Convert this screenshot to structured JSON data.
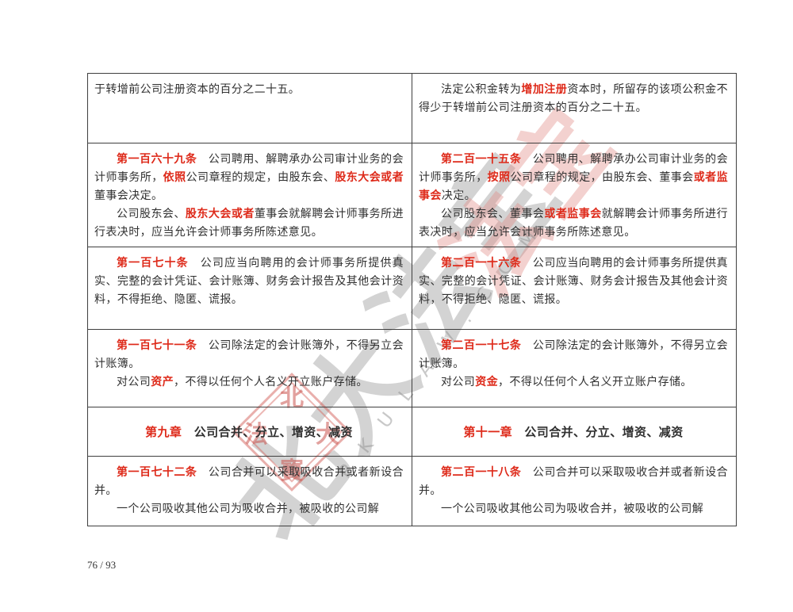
{
  "page": {
    "page_number": "76 / 93"
  },
  "colors": {
    "highlight": "#de2a1a",
    "text": "#303030",
    "border": "#3f3f3f"
  },
  "watermark": {
    "calligraphy_gray": "北大法宝",
    "calligraphy_pink": "法宝",
    "latin": "PKULAW.COM",
    "seal": {
      "top": "北",
      "left": "法",
      "right": "大",
      "bottom": "寳"
    }
  },
  "table": {
    "rows": [
      {
        "kind": "article",
        "left": {
          "paragraphs": [
            {
              "indent": false,
              "segments": [
                {
                  "t": "于转增前公司注册资本的百分之二十五。"
                }
              ]
            }
          ]
        },
        "right": {
          "paragraphs": [
            {
              "indent": true,
              "segments": [
                {
                  "t": "法定公积金转为"
                },
                {
                  "t": "增加注册",
                  "hl": true
                },
                {
                  "t": "资本时，所留存的该项公积金不得少于转增前公司注册资本的百分之二十五。"
                }
              ]
            }
          ]
        }
      },
      {
        "kind": "article",
        "left": {
          "paragraphs": [
            {
              "indent": true,
              "segments": [
                {
                  "t": "第一百六十九条",
                  "hl": true
                },
                {
                  "t": "　公司聘用、解聘承办公司审计业务的会计师事务所，"
                },
                {
                  "t": "依照",
                  "hl": true
                },
                {
                  "t": "公司章程的规定，由股东会、"
                },
                {
                  "t": "股东大会或者",
                  "hl": true
                },
                {
                  "t": "董事会决定。"
                }
              ]
            },
            {
              "indent": true,
              "segments": [
                {
                  "t": "公司股东会、"
                },
                {
                  "t": "股东大会或者",
                  "hl": true
                },
                {
                  "t": "董事会就解聘会计师事务所进行表决时，应当允许会计师事务所陈述意见。"
                }
              ]
            }
          ]
        },
        "right": {
          "paragraphs": [
            {
              "indent": true,
              "segments": [
                {
                  "t": "第二百一十五条",
                  "hl": true
                },
                {
                  "t": "　公司聘用、解聘承办公司审计业务的会计师事务所，"
                },
                {
                  "t": "按照",
                  "hl": true
                },
                {
                  "t": "公司章程的规定，由股东会、董事会"
                },
                {
                  "t": "或者监事会",
                  "hl": true
                },
                {
                  "t": "决定。"
                }
              ]
            },
            {
              "indent": true,
              "segments": [
                {
                  "t": "公司股东会、董事会"
                },
                {
                  "t": "或者监事会",
                  "hl": true
                },
                {
                  "t": "就解聘会计师事务所进行表决时，应当允许会计师事务所陈述意见。"
                }
              ]
            }
          ]
        }
      },
      {
        "kind": "article",
        "left": {
          "paragraphs": [
            {
              "indent": true,
              "segments": [
                {
                  "t": "第一百七十条",
                  "hl": true
                },
                {
                  "t": "　公司应当向聘用的会计师事务所提供真实、完整的会计凭证、会计账簿、财务会计报告及其他会计资料，不得拒绝、隐匿、谎报。"
                }
              ]
            }
          ]
        },
        "right": {
          "paragraphs": [
            {
              "indent": true,
              "segments": [
                {
                  "t": "第二百一十六条",
                  "hl": true
                },
                {
                  "t": "　公司应当向聘用的会计师事务所提供真实、完整的会计凭证、会计账簿、财务会计报告及其他会计资料，不得拒绝、隐匿、谎报。"
                }
              ]
            }
          ]
        }
      },
      {
        "kind": "article",
        "left": {
          "paragraphs": [
            {
              "indent": true,
              "segments": [
                {
                  "t": "第一百七十一条",
                  "hl": true
                },
                {
                  "t": "　公司除法定的会计账簿外，不得另立会计账簿。"
                }
              ]
            },
            {
              "indent": true,
              "segments": [
                {
                  "t": "对公司"
                },
                {
                  "t": "资产",
                  "hl": true
                },
                {
                  "t": "，不得以任何个人名义开立账户存储。"
                }
              ]
            }
          ]
        },
        "right": {
          "paragraphs": [
            {
              "indent": true,
              "segments": [
                {
                  "t": "第二百一十七条",
                  "hl": true
                },
                {
                  "t": "　公司除法定的会计账簿外，不得另立会计账簿。"
                }
              ]
            },
            {
              "indent": true,
              "segments": [
                {
                  "t": "对公司"
                },
                {
                  "t": "资金",
                  "hl": true
                },
                {
                  "t": "，不得以任何个人名义开立账户存储。"
                }
              ]
            }
          ]
        }
      },
      {
        "kind": "chapter",
        "left": {
          "paragraphs": [
            {
              "indent": false,
              "segments": [
                {
                  "t": "第九章",
                  "hl": true
                },
                {
                  "t": "　公司合并、分立、增资、减资"
                }
              ]
            }
          ]
        },
        "right": {
          "paragraphs": [
            {
              "indent": false,
              "segments": [
                {
                  "t": "第十一章",
                  "hl": true
                },
                {
                  "t": "　公司合并、分立、增资、减资"
                }
              ]
            }
          ]
        }
      },
      {
        "kind": "article",
        "left": {
          "paragraphs": [
            {
              "indent": true,
              "segments": [
                {
                  "t": "第一百七十二条",
                  "hl": true
                },
                {
                  "t": "　公司合并可以采取吸收合并或者新设合并。"
                }
              ]
            },
            {
              "indent": true,
              "segments": [
                {
                  "t": "一个公司吸收其他公司为吸收合并，被吸收的公司解"
                }
              ]
            }
          ]
        },
        "right": {
          "paragraphs": [
            {
              "indent": true,
              "segments": [
                {
                  "t": "第二百一十八条",
                  "hl": true
                },
                {
                  "t": "　公司合并可以采取吸收合并或者新设合并。"
                }
              ]
            },
            {
              "indent": true,
              "segments": [
                {
                  "t": "一个公司吸收其他公司为吸收合并，被吸收的公司解"
                }
              ]
            }
          ]
        }
      }
    ]
  }
}
